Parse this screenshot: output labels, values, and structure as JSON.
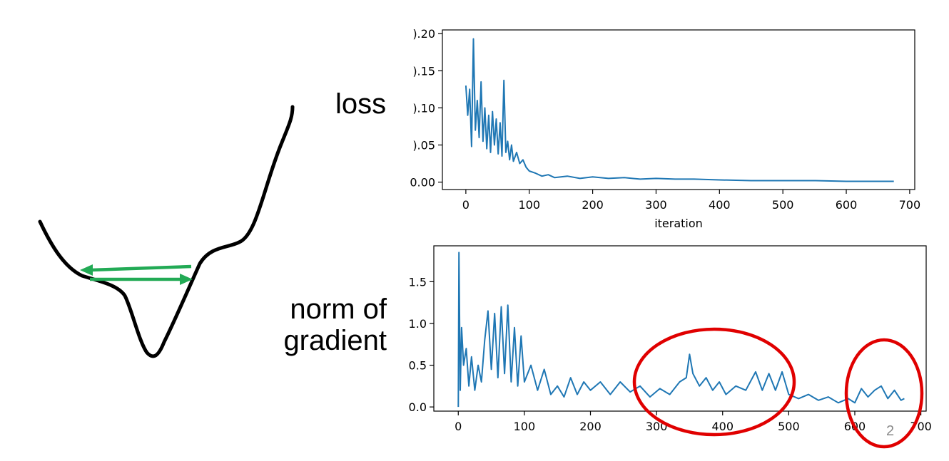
{
  "labels": {
    "loss": "loss",
    "grad_line1": "norm of",
    "grad_line2": "gradient",
    "page_number": "2"
  },
  "colors": {
    "series": "#1f77b4",
    "curve": "#000000",
    "arrows": "#22aa55",
    "circles": "#e00000"
  },
  "chart_data": [
    {
      "type": "line",
      "title": "",
      "xlabel": "iteration",
      "ylabel": "",
      "xlim": [
        -37,
        708
      ],
      "ylim": [
        -0.01,
        0.205
      ],
      "x_ticks": [
        0,
        100,
        200,
        300,
        400,
        500,
        600,
        700
      ],
      "y_ticks": [
        0.0,
        0.05,
        0.1,
        0.15,
        0.2
      ],
      "y_tick_labels": [
        "0.00",
        ").05",
        ").10",
        ").15",
        ").20"
      ],
      "grid": false,
      "series": [
        {
          "x": [
            0,
            3,
            6,
            9,
            12,
            15,
            18,
            21,
            24,
            27,
            30,
            33,
            36,
            39,
            42,
            45,
            48,
            51,
            54,
            57,
            60,
            63,
            66,
            69,
            72,
            75,
            80,
            85,
            90,
            95,
            100,
            110,
            120,
            130,
            140,
            160,
            180,
            200,
            225,
            250,
            275,
            300,
            330,
            360,
            400,
            450,
            500,
            550,
            600,
            650,
            675
          ],
          "y": [
            0.13,
            0.09,
            0.125,
            0.048,
            0.193,
            0.07,
            0.11,
            0.06,
            0.135,
            0.055,
            0.1,
            0.045,
            0.09,
            0.04,
            0.095,
            0.05,
            0.085,
            0.038,
            0.08,
            0.035,
            0.137,
            0.04,
            0.055,
            0.03,
            0.05,
            0.028,
            0.04,
            0.025,
            0.03,
            0.02,
            0.015,
            0.012,
            0.008,
            0.01,
            0.006,
            0.008,
            0.005,
            0.007,
            0.005,
            0.006,
            0.004,
            0.005,
            0.004,
            0.004,
            0.003,
            0.002,
            0.002,
            0.002,
            0.001,
            0.001,
            0.001
          ]
        }
      ]
    },
    {
      "type": "line",
      "title": "",
      "xlabel": "",
      "ylabel": "",
      "xlim": [
        -37,
        708
      ],
      "ylim": [
        -0.05,
        1.93
      ],
      "x_ticks": [
        0,
        100,
        200,
        300,
        400,
        500,
        600,
        700
      ],
      "x_tick_labels": [
        "0",
        "100",
        "200",
        "300",
        "400",
        "500",
        "600",
        "700"
      ],
      "y_ticks": [
        0.0,
        0.5,
        1.0,
        1.5
      ],
      "y_tick_labels": [
        "0.0",
        "0.5",
        "1.0",
        "1.5"
      ],
      "grid": false,
      "series": [
        {
          "x": [
            0,
            1,
            3,
            5,
            8,
            12,
            16,
            20,
            25,
            30,
            35,
            40,
            45,
            50,
            55,
            60,
            65,
            70,
            75,
            80,
            85,
            90,
            95,
            100,
            110,
            120,
            130,
            140,
            150,
            160,
            170,
            180,
            190,
            200,
            215,
            230,
            245,
            260,
            275,
            290,
            305,
            320,
            335,
            345,
            350,
            355,
            365,
            375,
            385,
            395,
            405,
            420,
            435,
            450,
            460,
            470,
            480,
            490,
            500,
            515,
            530,
            545,
            560,
            575,
            590,
            600,
            610,
            620,
            630,
            640,
            650,
            660,
            670,
            675
          ],
          "y": [
            0.0,
            1.85,
            0.2,
            0.95,
            0.5,
            0.7,
            0.25,
            0.6,
            0.2,
            0.5,
            0.3,
            0.8,
            1.15,
            0.45,
            1.12,
            0.35,
            1.2,
            0.4,
            1.22,
            0.3,
            0.95,
            0.25,
            0.85,
            0.3,
            0.5,
            0.2,
            0.45,
            0.15,
            0.25,
            0.12,
            0.35,
            0.15,
            0.3,
            0.2,
            0.3,
            0.15,
            0.3,
            0.18,
            0.25,
            0.12,
            0.22,
            0.15,
            0.3,
            0.35,
            0.63,
            0.4,
            0.25,
            0.35,
            0.2,
            0.3,
            0.15,
            0.25,
            0.2,
            0.42,
            0.2,
            0.4,
            0.2,
            0.42,
            0.15,
            0.1,
            0.15,
            0.08,
            0.12,
            0.05,
            0.1,
            0.05,
            0.22,
            0.12,
            0.2,
            0.25,
            0.1,
            0.2,
            0.08,
            0.1
          ]
        }
      ]
    }
  ]
}
